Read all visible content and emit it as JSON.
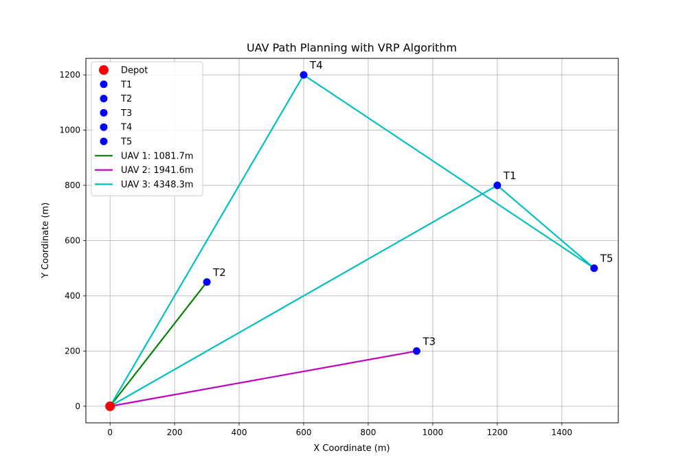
{
  "chart_data": {
    "type": "scatter",
    "title": "UAV Path Planning with VRP Algorithm",
    "xlabel": "X Coordinate (m)",
    "ylabel": "Y Coordinate (m)",
    "xlim": [
      -75,
      1575
    ],
    "ylim": [
      -60,
      1260
    ],
    "xticks": [
      0,
      200,
      400,
      600,
      800,
      1000,
      1200,
      1400
    ],
    "yticks": [
      0,
      200,
      400,
      600,
      800,
      1000,
      1200
    ],
    "grid": true,
    "legend_position": "top-left",
    "depot": {
      "name": "Depot",
      "x": 0,
      "y": 0,
      "color": "#ff0000"
    },
    "targets": [
      {
        "name": "T1",
        "x": 1200,
        "y": 800,
        "color": "#0000ff"
      },
      {
        "name": "T2",
        "x": 300,
        "y": 450,
        "color": "#0000ff"
      },
      {
        "name": "T3",
        "x": 950,
        "y": 200,
        "color": "#0000ff"
      },
      {
        "name": "T4",
        "x": 600,
        "y": 1200,
        "color": "#0000ff"
      },
      {
        "name": "T5",
        "x": 1500,
        "y": 500,
        "color": "#0000ff"
      }
    ],
    "routes": [
      {
        "name": "UAV 1: 1081.7m",
        "color": "#008000",
        "path": [
          [
            0,
            0
          ],
          [
            300,
            450
          ],
          [
            0,
            0
          ]
        ]
      },
      {
        "name": "UAV 2: 1941.6m",
        "color": "#bf00bf",
        "path": [
          [
            0,
            0
          ],
          [
            950,
            200
          ],
          [
            0,
            0
          ]
        ]
      },
      {
        "name": "UAV 3: 4348.3m",
        "color": "#00bfbf",
        "path": [
          [
            0,
            0
          ],
          [
            1200,
            800
          ],
          [
            1500,
            500
          ],
          [
            600,
            1200
          ],
          [
            0,
            0
          ]
        ]
      }
    ]
  }
}
